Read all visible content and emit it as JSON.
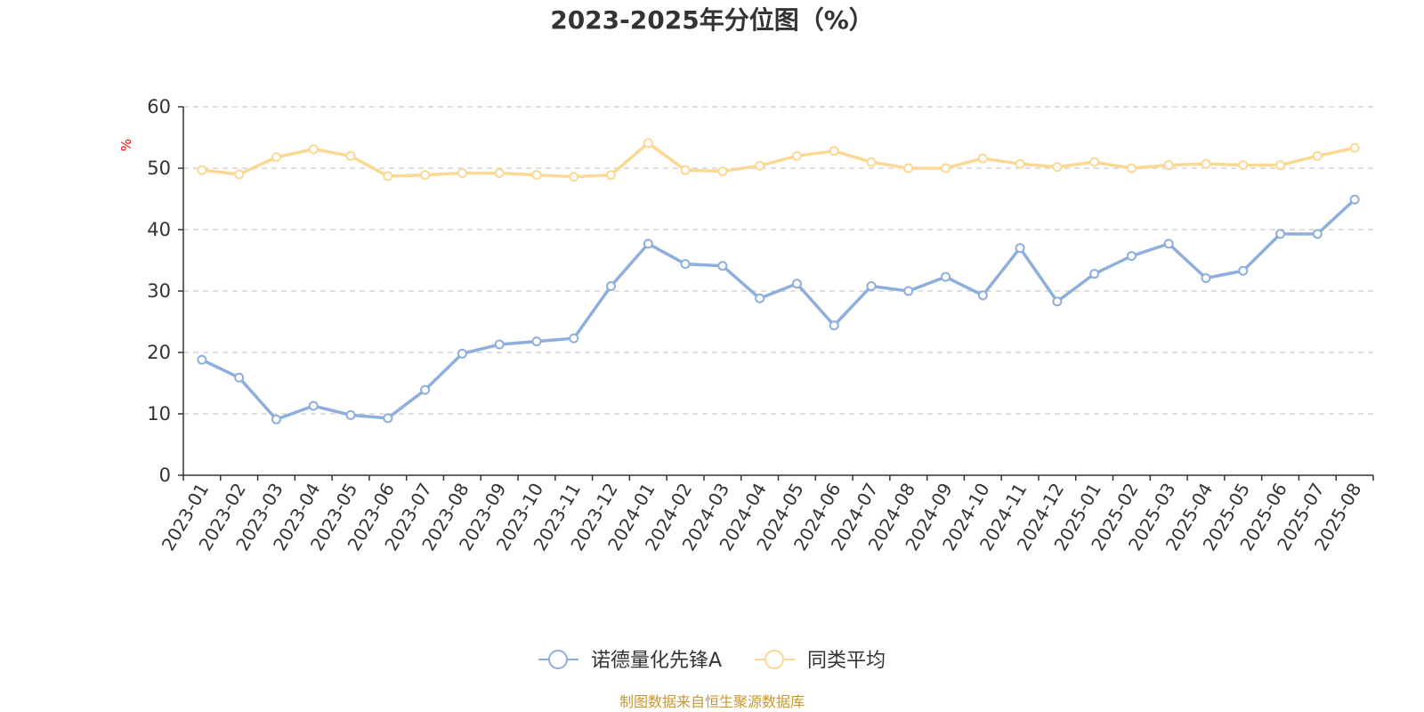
{
  "chart_data": {
    "type": "line",
    "title": "2023-2025年分位图（%）",
    "ylabel": "%",
    "ylim": [
      0,
      60
    ],
    "yticks": [
      "0",
      "10",
      "20",
      "30",
      "40",
      "50",
      "60"
    ],
    "grid": true,
    "legend_position": "bottom",
    "categories": [
      "2023-01",
      "2023-02",
      "2023-03",
      "2023-04",
      "2023-05",
      "2023-06",
      "2023-07",
      "2023-08",
      "2023-09",
      "2023-10",
      "2023-11",
      "2023-12",
      "2024-01",
      "2024-02",
      "2024-03",
      "2024-04",
      "2024-05",
      "2024-06",
      "2024-07",
      "2024-08",
      "2024-09",
      "2024-10",
      "2024-11",
      "2024-12",
      "2025-01",
      "2025-02",
      "2025-03",
      "2025-04",
      "2025-05",
      "2025-06",
      "2025-07",
      "2025-08"
    ],
    "series": [
      {
        "name": "诺德量化先锋A",
        "color": "#8eaedb",
        "values": [
          18.8,
          15.9,
          9.1,
          11.3,
          9.8,
          9.3,
          13.9,
          19.8,
          21.3,
          21.8,
          22.3,
          30.8,
          37.7,
          34.4,
          34.1,
          28.8,
          31.2,
          24.4,
          30.8,
          30.0,
          32.3,
          29.3,
          37.0,
          28.3,
          32.8,
          35.7,
          37.7,
          32.1,
          33.3,
          39.3,
          39.3,
          44.9
        ]
      },
      {
        "name": "同类平均",
        "color": "#fbd994",
        "values": [
          49.7,
          49.0,
          51.8,
          53.1,
          52.0,
          48.7,
          48.9,
          49.2,
          49.2,
          48.9,
          48.6,
          48.9,
          54.1,
          49.7,
          49.5,
          50.4,
          52.0,
          52.8,
          51.0,
          50.0,
          50.0,
          51.6,
          50.7,
          50.2,
          51.0,
          50.0,
          50.5,
          50.7,
          50.5,
          50.5,
          52.0,
          53.3
        ]
      }
    ],
    "source": "制图数据来自恒生聚源数据库",
    "colors": {
      "axis": "#333333",
      "grid": "#cccccc",
      "unit": "#ff0000",
      "source": "#c8972f",
      "title": "#333333"
    }
  }
}
